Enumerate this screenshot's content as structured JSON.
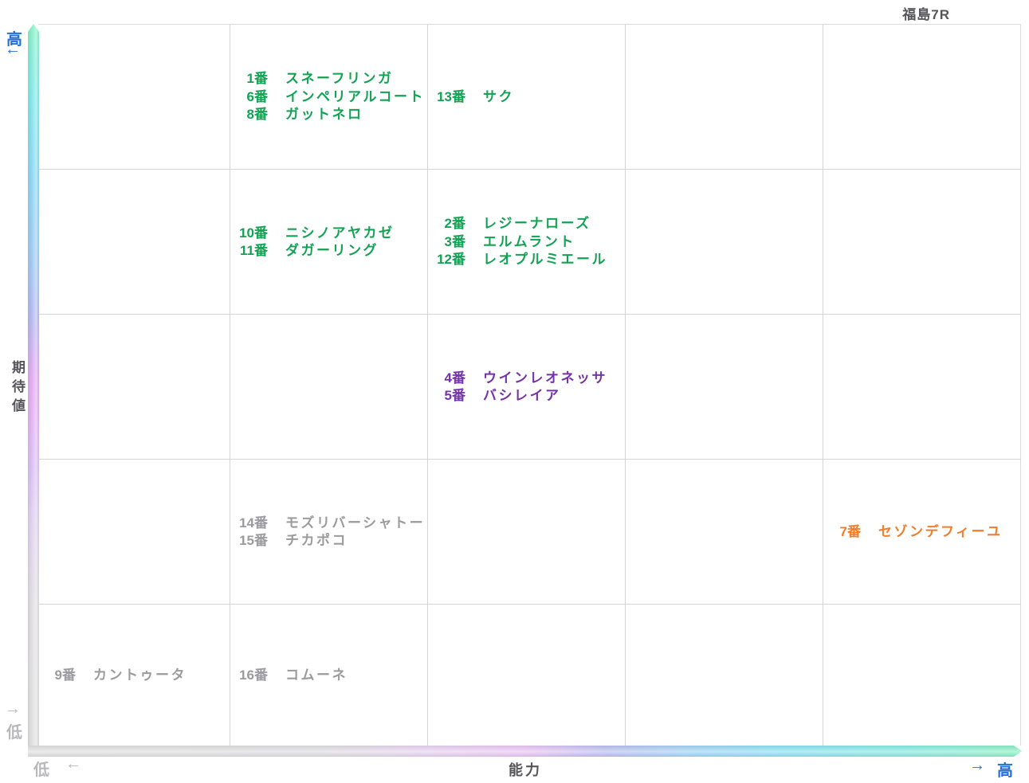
{
  "header": {
    "title": "福島7R"
  },
  "axes": {
    "y": {
      "label": "期待値",
      "high_label": "高",
      "high_arrow": "←",
      "low_label": "低",
      "low_arrow": "→"
    },
    "x": {
      "label": "能力",
      "high_label": "高",
      "high_arrow": "→",
      "low_label": "低",
      "low_arrow": "←"
    }
  },
  "palette": {
    "green": "#13a254",
    "purple": "#7433a8",
    "orange": "#ee7d2e",
    "gray": "#9b9b9d",
    "axis_blue": "#2470d8",
    "axis_dim_gray": "#b9b9bb",
    "label_dark": "#565658",
    "grid_line": "#d4d4d4"
  },
  "chart_data": {
    "type": "scatter",
    "title": "福島7R",
    "xlabel": "能力",
    "ylabel": "期待値",
    "x_axis": {
      "low": "低",
      "high": "高"
    },
    "y_axis": {
      "low": "低",
      "high": "高"
    },
    "grid": {
      "rows": 5,
      "cols": 5,
      "note": "row 1 = top (期待値 high), col 1 = left (能力 low)"
    },
    "groups": [
      {
        "row": 1,
        "col": 2,
        "color": "green",
        "horses": [
          {
            "num": "1番",
            "name": "スネーフリンガ"
          },
          {
            "num": "6番",
            "name": "インペリアルコート"
          },
          {
            "num": "8番",
            "name": "ガットネロ"
          }
        ]
      },
      {
        "row": 1,
        "col": 3,
        "color": "green",
        "horses": [
          {
            "num": "13番",
            "name": "サク"
          }
        ]
      },
      {
        "row": 2,
        "col": 2,
        "color": "green",
        "horses": [
          {
            "num": "10番",
            "name": "ニシノアヤカゼ"
          },
          {
            "num": "11番",
            "name": "ダガーリング"
          }
        ]
      },
      {
        "row": 2,
        "col": 3,
        "color": "green",
        "horses": [
          {
            "num": "2番",
            "name": "レジーナローズ"
          },
          {
            "num": "3番",
            "name": "エルムラント"
          },
          {
            "num": "12番",
            "name": "レオプルミエール"
          }
        ]
      },
      {
        "row": 3,
        "col": 3,
        "color": "purple",
        "horses": [
          {
            "num": "4番",
            "name": "ウインレオネッサ"
          },
          {
            "num": "5番",
            "name": "バシレイア"
          }
        ]
      },
      {
        "row": 4,
        "col": 2,
        "color": "gray",
        "horses": [
          {
            "num": "14番",
            "name": "モズリバーシャトー"
          },
          {
            "num": "15番",
            "name": "チカポコ"
          }
        ]
      },
      {
        "row": 4,
        "col": 5,
        "color": "orange",
        "horses": [
          {
            "num": "7番",
            "name": "セゾンデフィーユ"
          }
        ]
      },
      {
        "row": 5,
        "col": 1,
        "color": "gray",
        "horses": [
          {
            "num": "9番",
            "name": "カントゥータ"
          }
        ]
      },
      {
        "row": 5,
        "col": 2,
        "color": "gray",
        "horses": [
          {
            "num": "16番",
            "name": "コムーネ"
          }
        ]
      }
    ]
  }
}
